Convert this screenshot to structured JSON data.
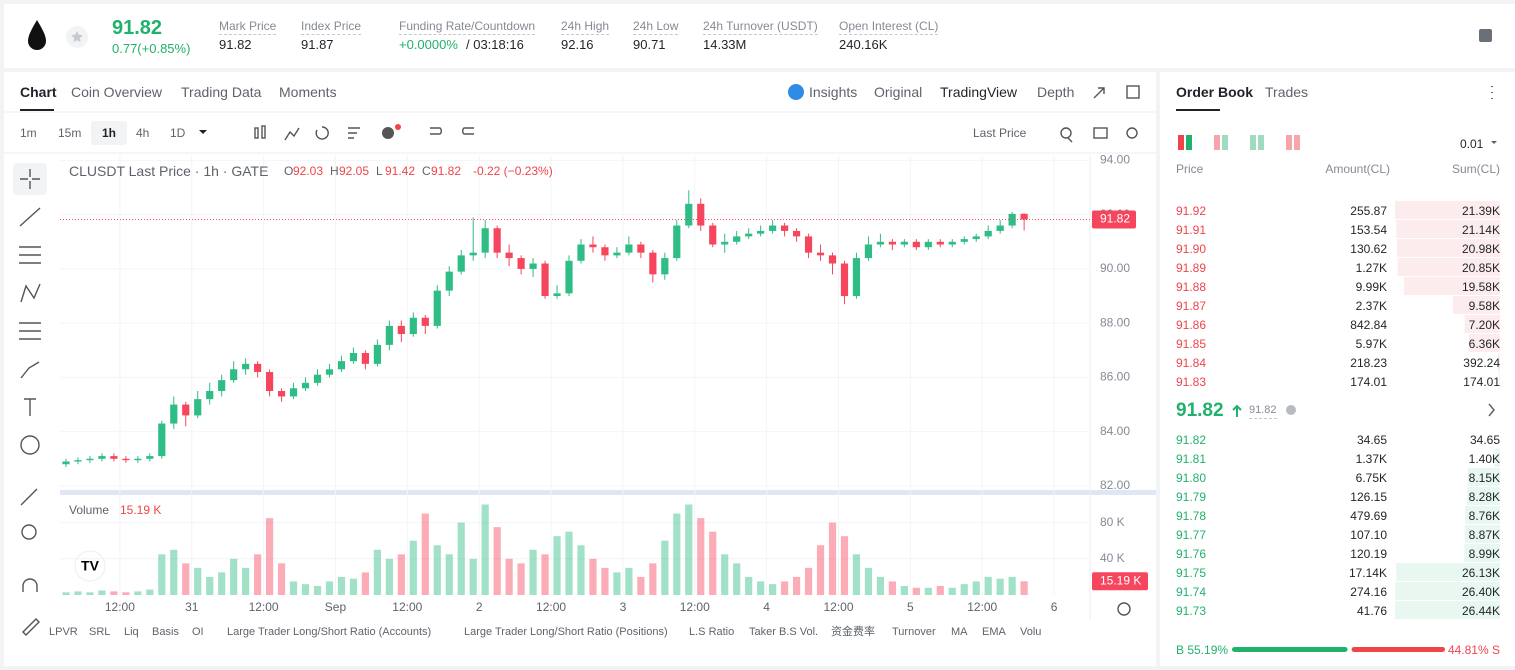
{
  "header": {
    "price": "91.82",
    "change": "0.77(+0.85%)",
    "stats": [
      {
        "label": "Mark Price",
        "value": "91.82"
      },
      {
        "label": "Index Price",
        "value": "91.87"
      },
      {
        "label": "Funding Rate/Countdown",
        "value": "+0.0000%",
        "value2": "/ 03:18:16"
      },
      {
        "label": "24h High",
        "value": "92.16"
      },
      {
        "label": "24h Low",
        "value": "90.71"
      },
      {
        "label": "24h Turnover (USDT)",
        "value": "14.33M"
      },
      {
        "label": "Open Interest (CL)",
        "value": "240.16K"
      }
    ]
  },
  "tabs": [
    "Chart",
    "Coin Overview",
    "Trading Data",
    "Moments"
  ],
  "views": [
    "Insights",
    "Original",
    "TradingView",
    "Depth"
  ],
  "intervals": [
    "1m",
    "15m",
    "1h",
    "4h",
    "1D"
  ],
  "price_source": "Last Price",
  "indicators": [
    "LPVR",
    "SRL",
    "Liq",
    "Basis",
    "OI",
    "Large Trader Long/Short Ratio (Accounts)",
    "Large Trader Long/Short Ratio (Positions)",
    "L.S Ratio",
    "Taker B.S Vol.",
    "资金费率",
    "Turnover",
    "MA",
    "EMA",
    "Volu"
  ],
  "chart_data": {
    "type": "candlestick",
    "title": "CLUSDT Last Price · 1h · GATE",
    "legend": [
      {
        "k": "O",
        "v": "92.03"
      },
      {
        "k": "H",
        "v": "92.05"
      },
      {
        "k": "L",
        "v": "91.42"
      },
      {
        "k": "C",
        "v": "91.82"
      }
    ],
    "legend_change": "-0.22 (−0.23%)",
    "open": [
      82.8,
      82.9,
      82.95,
      83.0,
      83.1,
      83.0,
      82.95,
      83.0,
      83.1,
      84.3,
      85.0,
      84.6,
      85.2,
      85.5,
      85.9,
      86.3,
      86.5,
      86.2,
      85.5,
      85.3,
      85.6,
      85.8,
      86.1,
      86.3,
      86.6,
      86.9,
      86.5,
      87.2,
      87.9,
      87.6,
      88.2,
      87.9,
      89.2,
      89.9,
      90.5,
      90.6,
      91.5,
      90.6,
      90.4,
      90.0,
      90.2,
      89.0,
      89.1,
      90.3,
      90.9,
      90.8,
      90.5,
      90.6,
      90.9,
      90.6,
      89.8,
      90.4,
      91.6,
      92.4,
      91.6,
      90.9,
      91.0,
      91.2,
      91.3,
      91.4,
      91.6,
      91.4,
      91.2,
      90.6,
      90.5,
      90.2,
      89.0,
      90.4,
      90.9,
      91.0,
      90.9,
      91.0,
      90.8,
      91.0,
      90.9,
      91.0,
      91.1,
      91.2,
      91.4,
      91.6,
      92.03
    ],
    "high": [
      83.0,
      83.05,
      83.1,
      83.2,
      83.2,
      83.1,
      83.1,
      83.2,
      84.4,
      85.3,
      85.1,
      85.5,
      85.8,
      86.1,
      86.6,
      86.7,
      86.6,
      86.3,
      85.6,
      85.8,
      86.0,
      86.3,
      86.5,
      86.8,
      87.1,
      87.0,
      87.4,
      88.1,
      88.1,
      88.4,
      88.3,
      89.4,
      90.1,
      90.7,
      91.9,
      91.8,
      91.6,
      90.9,
      90.5,
      90.4,
      90.3,
      89.4,
      90.5,
      91.1,
      91.2,
      90.9,
      90.8,
      91.2,
      91.0,
      90.7,
      90.6,
      91.8,
      92.9,
      92.6,
      91.7,
      91.3,
      91.4,
      91.5,
      91.6,
      91.8,
      91.7,
      91.5,
      91.3,
      90.9,
      90.6,
      90.3,
      90.6,
      91.2,
      91.3,
      91.1,
      91.1,
      91.1,
      91.1,
      91.1,
      91.1,
      91.2,
      91.3,
      91.6,
      91.8,
      92.1,
      92.05
    ],
    "low": [
      82.7,
      82.8,
      82.85,
      82.9,
      82.9,
      82.85,
      82.85,
      82.9,
      83.0,
      84.1,
      84.2,
      84.5,
      85.0,
      85.3,
      85.8,
      86.1,
      86.0,
      85.3,
      85.1,
      85.2,
      85.5,
      85.7,
      86.0,
      86.2,
      86.5,
      86.3,
      86.4,
      87.0,
      87.3,
      87.5,
      87.6,
      87.8,
      89.0,
      89.8,
      90.3,
      90.4,
      90.4,
      90.1,
      89.8,
      89.7,
      88.9,
      88.9,
      89.0,
      90.2,
      90.6,
      90.3,
      90.4,
      90.5,
      90.4,
      89.5,
      89.6,
      90.3,
      91.5,
      91.4,
      90.8,
      90.6,
      90.9,
      91.1,
      91.2,
      91.3,
      91.2,
      91.0,
      90.4,
      90.3,
      89.8,
      88.7,
      88.9,
      90.3,
      90.8,
      90.7,
      90.8,
      90.7,
      90.7,
      90.8,
      90.8,
      90.9,
      91.0,
      91.1,
      91.3,
      91.5,
      91.42
    ],
    "close": [
      82.9,
      82.95,
      83.0,
      83.1,
      83.0,
      82.95,
      83.0,
      83.1,
      84.3,
      85.0,
      84.6,
      85.2,
      85.5,
      85.9,
      86.3,
      86.5,
      86.2,
      85.5,
      85.3,
      85.6,
      85.8,
      86.1,
      86.3,
      86.6,
      86.9,
      86.5,
      87.2,
      87.9,
      87.6,
      88.2,
      87.9,
      89.2,
      89.9,
      90.5,
      90.6,
      91.5,
      90.6,
      90.4,
      90.0,
      90.2,
      89.0,
      89.1,
      90.3,
      90.9,
      90.8,
      90.5,
      90.6,
      90.9,
      90.6,
      89.8,
      90.4,
      91.6,
      92.4,
      91.6,
      90.9,
      91.0,
      91.2,
      91.3,
      91.4,
      91.6,
      91.4,
      91.2,
      90.6,
      90.5,
      90.2,
      89.0,
      90.4,
      90.9,
      91.0,
      90.9,
      91.0,
      90.8,
      91.0,
      90.9,
      91.0,
      91.1,
      91.2,
      91.4,
      91.6,
      92.03,
      91.82
    ],
    "up_color": "#2ebd85",
    "down_color": "#f6465d",
    "xlim": [
      -0.5,
      85.5
    ],
    "xticks": [
      {
        "value": 4.5,
        "label": "12:00"
      },
      {
        "value": 10.5,
        "label": "31"
      },
      {
        "value": 16.5,
        "label": "12:00"
      },
      {
        "value": 22.5,
        "label": "Sep"
      },
      {
        "value": 28.5,
        "label": "12:00"
      },
      {
        "value": 34.5,
        "label": "2"
      },
      {
        "value": 40.5,
        "label": "12:00"
      },
      {
        "value": 46.5,
        "label": "3"
      },
      {
        "value": 52.5,
        "label": "12:00"
      },
      {
        "value": 58.5,
        "label": "4"
      },
      {
        "value": 64.5,
        "label": "12:00"
      },
      {
        "value": 70.5,
        "label": "5"
      },
      {
        "value": 76.5,
        "label": "12:00"
      },
      {
        "value": 82.5,
        "label": "6"
      }
    ],
    "ylim": [
      81.85,
      94.2
    ],
    "yticks": [
      {
        "value": 82,
        "label": "82.00"
      },
      {
        "value": 84,
        "label": "84.00"
      },
      {
        "value": 86,
        "label": "86.00"
      },
      {
        "value": 88,
        "label": "88.00"
      },
      {
        "value": 90,
        "label": "90.00"
      },
      {
        "value": 92,
        "label": "92.00"
      },
      {
        "value": 94,
        "label": "94.00"
      }
    ],
    "last_price": {
      "value": 91.82,
      "label": "91.82"
    },
    "volume": {
      "name": "Volume",
      "last_label": "15.19 K",
      "vlim": [
        0,
        105
      ],
      "vticks": [
        {
          "value": 40,
          "label": "40 K"
        },
        {
          "value": 80,
          "label": "80 K"
        }
      ],
      "values": [
        3,
        4,
        3,
        5,
        4,
        3,
        4,
        6,
        45,
        50,
        35,
        30,
        20,
        25,
        40,
        30,
        45,
        85,
        35,
        15,
        12,
        10,
        15,
        20,
        18,
        25,
        50,
        40,
        45,
        60,
        90,
        55,
        45,
        80,
        40,
        100,
        75,
        40,
        35,
        50,
        45,
        65,
        70,
        55,
        40,
        30,
        25,
        30,
        20,
        35,
        60,
        90,
        100,
        85,
        70,
        45,
        35,
        20,
        15,
        12,
        15,
        20,
        30,
        55,
        80,
        65,
        45,
        30,
        20,
        15,
        10,
        8,
        8,
        10,
        8,
        12,
        15,
        20,
        18,
        20,
        15.19
      ]
    },
    "legend_volume": "15.19 K"
  },
  "order_book": {
    "tabs": [
      "Order Book",
      "Trades"
    ],
    "tick": "0.01",
    "columns": [
      "Price",
      "Amount(CL)",
      "Sum(CL)"
    ],
    "asks": [
      [
        "91.92",
        "255.87",
        "21.39K"
      ],
      [
        "91.91",
        "153.54",
        "21.14K"
      ],
      [
        "91.90",
        "130.62",
        "20.98K"
      ],
      [
        "91.89",
        "1.27K",
        "20.85K"
      ],
      [
        "91.88",
        "9.99K",
        "19.58K"
      ],
      [
        "91.87",
        "2.37K",
        "9.58K"
      ],
      [
        "91.86",
        "842.84",
        "7.20K"
      ],
      [
        "91.85",
        "5.97K",
        "6.36K"
      ],
      [
        "91.84",
        "218.23",
        "392.24"
      ],
      [
        "91.83",
        "174.01",
        "174.01"
      ]
    ],
    "last": "91.82",
    "mark": "91.82",
    "bids": [
      [
        "91.82",
        "34.65",
        "34.65"
      ],
      [
        "91.81",
        "1.37K",
        "1.40K"
      ],
      [
        "91.80",
        "6.75K",
        "8.15K"
      ],
      [
        "91.79",
        "126.15",
        "8.28K"
      ],
      [
        "91.78",
        "479.69",
        "8.76K"
      ],
      [
        "91.77",
        "107.10",
        "8.87K"
      ],
      [
        "91.76",
        "120.19",
        "8.99K"
      ],
      [
        "91.75",
        "17.14K",
        "26.13K"
      ],
      [
        "91.74",
        "274.16",
        "26.40K"
      ],
      [
        "91.73",
        "41.76",
        "26.44K"
      ]
    ],
    "buy": {
      "value": 55.19,
      "label": "B 55.19%"
    },
    "sell": {
      "value": 44.81,
      "label": "44.81% S"
    }
  }
}
